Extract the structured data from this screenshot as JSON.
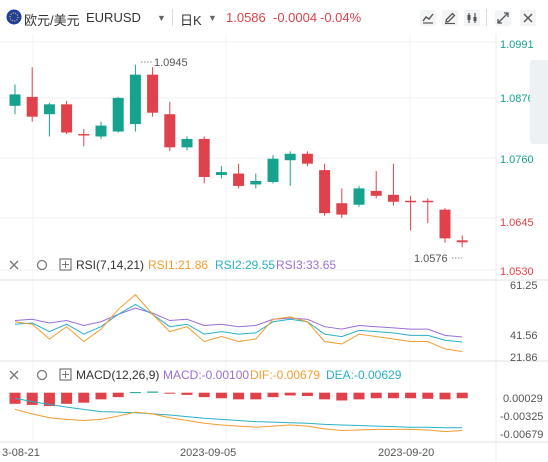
{
  "header": {
    "pair_cn": "欧元/美元",
    "pair_code": "EURUSD",
    "period": "日K",
    "price": "1.0586",
    "change": "-0.0004",
    "change_pct": "-0.04%",
    "down_color": "#e0424b",
    "up_color": "#16a28f",
    "icons": [
      "indicator-icon",
      "draw-pen-icon",
      "settings-icon",
      "expand-icon",
      "close-icon"
    ]
  },
  "price_axis": {
    "ticks": [
      "1.0991",
      "1.0876",
      "1.0760",
      "1.0645",
      "1.0530"
    ],
    "ylim": [
      1.053,
      1.0991
    ]
  },
  "annotations": {
    "high": "1.0945",
    "low": "1.0576"
  },
  "rsi": {
    "title": "RSI(7,14,21)",
    "rsi1_label": "RSI1:21.86",
    "rsi2_label": "RSI2:29.55",
    "rsi3_label": "RSI3:33.65",
    "rsi1_color": "#f39c2f",
    "rsi2_color": "#29b0c8",
    "rsi3_color": "#9b6fd6",
    "ticks": [
      "61.25",
      "41.56",
      "21.86"
    ]
  },
  "macd": {
    "title": "MACD(12,26,9)",
    "macd_label": "MACD:-0.00100",
    "dif_label": "DIF:-0.00679",
    "dea_label": "DEA:-0.00629",
    "dif_color": "#f39c2f",
    "dea_color": "#29b0c8",
    "ticks": [
      "0.00029",
      "-0.00325",
      "-0.00679"
    ]
  },
  "x_axis": {
    "labels": [
      "3-08-21",
      "2023-09-05",
      "2023-09-20"
    ]
  },
  "chart_data": {
    "type": "candlestick",
    "y_range": [
      1.053,
      1.0991
    ],
    "candles": [
      {
        "o": 1.0862,
        "h": 1.0905,
        "l": 1.0845,
        "c": 1.0885
      },
      {
        "o": 1.088,
        "h": 1.094,
        "l": 1.083,
        "c": 1.084
      },
      {
        "o": 1.0845,
        "h": 1.0868,
        "l": 1.08,
        "c": 1.0865
      },
      {
        "o": 1.0865,
        "h": 1.0872,
        "l": 1.0805,
        "c": 1.0808
      },
      {
        "o": 1.0805,
        "h": 1.0815,
        "l": 1.078,
        "c": 1.0802
      },
      {
        "o": 1.08,
        "h": 1.083,
        "l": 1.0795,
        "c": 1.0822
      },
      {
        "o": 1.081,
        "h": 1.088,
        "l": 1.0808,
        "c": 1.0878
      },
      {
        "o": 1.0825,
        "h": 1.0945,
        "l": 1.081,
        "c": 1.0925
      },
      {
        "o": 1.0925,
        "h": 1.094,
        "l": 1.084,
        "c": 1.0848
      },
      {
        "o": 1.0845,
        "h": 1.087,
        "l": 1.077,
        "c": 1.0778
      },
      {
        "o": 1.0778,
        "h": 1.08,
        "l": 1.0772,
        "c": 1.0795
      },
      {
        "o": 1.0795,
        "h": 1.08,
        "l": 1.0705,
        "c": 1.0718
      },
      {
        "o": 1.0722,
        "h": 1.074,
        "l": 1.0715,
        "c": 1.0728
      },
      {
        "o": 1.0725,
        "h": 1.0745,
        "l": 1.0695,
        "c": 1.07
      },
      {
        "o": 1.0703,
        "h": 1.0725,
        "l": 1.0695,
        "c": 1.071
      },
      {
        "o": 1.0708,
        "h": 1.0762,
        "l": 1.0705,
        "c": 1.0755
      },
      {
        "o": 1.0752,
        "h": 1.077,
        "l": 1.07,
        "c": 1.0765
      },
      {
        "o": 1.0765,
        "h": 1.077,
        "l": 1.074,
        "c": 1.0745
      },
      {
        "o": 1.0732,
        "h": 1.0745,
        "l": 1.064,
        "c": 1.0645
      },
      {
        "o": 1.0665,
        "h": 1.0695,
        "l": 1.0635,
        "c": 1.0642
      },
      {
        "o": 1.0662,
        "h": 1.07,
        "l": 1.0658,
        "c": 1.0695
      },
      {
        "o": 1.069,
        "h": 1.073,
        "l": 1.0675,
        "c": 1.068
      },
      {
        "o": 1.0682,
        "h": 1.0745,
        "l": 1.066,
        "c": 1.0668
      },
      {
        "o": 1.067,
        "h": 1.068,
        "l": 1.061,
        "c": 1.0668
      },
      {
        "o": 1.067,
        "h": 1.0675,
        "l": 1.0625,
        "c": 1.0668
      },
      {
        "o": 1.0652,
        "h": 1.0655,
        "l": 1.0585,
        "c": 1.0594
      },
      {
        "o": 1.059,
        "h": 1.06,
        "l": 1.0576,
        "c": 1.0586
      }
    ],
    "rsi": {
      "range": [
        15,
        75
      ],
      "rsi1": [
        46,
        44,
        32,
        42,
        30,
        40,
        56,
        68,
        52,
        38,
        42,
        30,
        34,
        30,
        32,
        48,
        50,
        46,
        30,
        28,
        36,
        34,
        32,
        30,
        30,
        24,
        21.86
      ],
      "rsi2": [
        44,
        45,
        38,
        44,
        36,
        42,
        52,
        60,
        52,
        42,
        44,
        36,
        38,
        36,
        37,
        46,
        48,
        46,
        36,
        34,
        39,
        38,
        37,
        35,
        35,
        31,
        29.55
      ],
      "rsi3": [
        47,
        48,
        45,
        47,
        43,
        46,
        52,
        57,
        53,
        47,
        48,
        43,
        44,
        42,
        43,
        48,
        49,
        48,
        42,
        40,
        43,
        42,
        41,
        40,
        40,
        35,
        33.65
      ]
    },
    "macd": {
      "range": [
        -0.0085,
        0.0012
      ],
      "hist": [
        -0.002,
        -0.0022,
        -0.0024,
        -0.002,
        -0.0018,
        -0.0012,
        -0.0008,
        0.0001,
        0.0002,
        -0.0001,
        -0.0004,
        -0.0008,
        -0.001,
        -0.0012,
        -0.0012,
        -0.0008,
        -0.0005,
        -0.0006,
        -0.0012,
        -0.0014,
        -0.0012,
        -0.001,
        -0.001,
        -0.001,
        -0.0011,
        -0.0012,
        -0.001
      ],
      "dif": [
        -0.003,
        -0.0038,
        -0.0045,
        -0.0048,
        -0.005,
        -0.0048,
        -0.0042,
        -0.0035,
        -0.0038,
        -0.0045,
        -0.005,
        -0.0055,
        -0.0058,
        -0.006,
        -0.0062,
        -0.006,
        -0.0058,
        -0.006,
        -0.0065,
        -0.0068,
        -0.0067,
        -0.0066,
        -0.0066,
        -0.0066,
        -0.0067,
        -0.007,
        -0.00679
      ],
      "dea": [
        -0.001,
        -0.0016,
        -0.0021,
        -0.0026,
        -0.003,
        -0.0034,
        -0.0035,
        -0.0036,
        -0.0038,
        -0.004,
        -0.0043,
        -0.0046,
        -0.0048,
        -0.005,
        -0.0052,
        -0.0053,
        -0.0054,
        -0.0055,
        -0.0057,
        -0.0058,
        -0.0059,
        -0.006,
        -0.0061,
        -0.0062,
        -0.0062,
        -0.0063,
        -0.00629
      ]
    }
  }
}
